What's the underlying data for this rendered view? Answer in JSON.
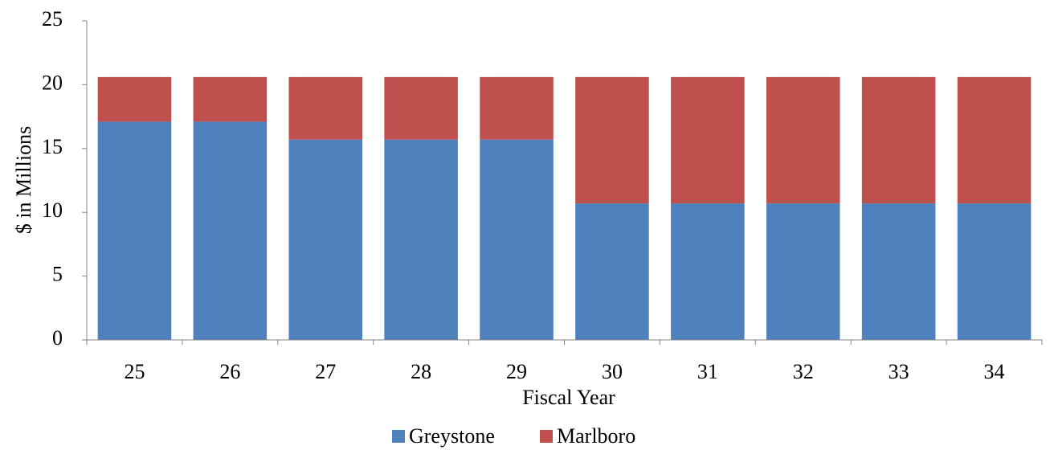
{
  "chart_data": {
    "type": "bar",
    "stacked": true,
    "categories": [
      "25",
      "26",
      "27",
      "28",
      "29",
      "30",
      "31",
      "32",
      "33",
      "34"
    ],
    "series": [
      {
        "name": "Greystone",
        "color": "#4F81BD",
        "values": [
          17.1,
          17.1,
          15.7,
          15.7,
          15.7,
          10.7,
          10.7,
          10.7,
          10.7,
          10.7
        ]
      },
      {
        "name": "Marlboro",
        "color": "#C0504D",
        "values": [
          3.5,
          3.5,
          4.9,
          4.9,
          4.9,
          9.9,
          9.9,
          9.9,
          9.9,
          9.9
        ]
      }
    ],
    "xlabel": "Fiscal Year",
    "ylabel": "$ in Millions",
    "ylim": [
      0,
      25
    ],
    "yticks": [
      "0",
      "5",
      "10",
      "15",
      "20",
      "25"
    ],
    "grid": false,
    "legend_position": "bottom"
  }
}
